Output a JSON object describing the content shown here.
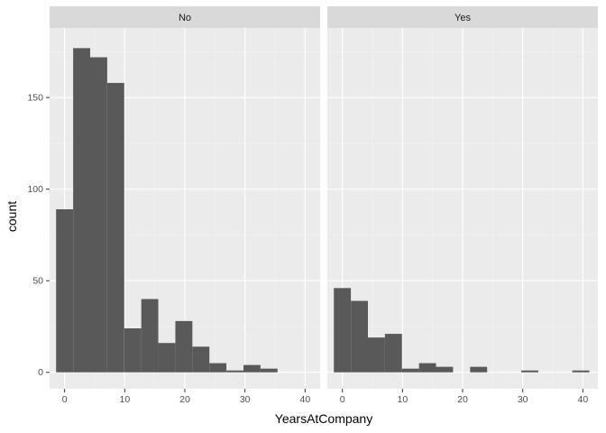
{
  "chart_data": {
    "type": "bar",
    "subtype": "faceted-histogram",
    "xlabel": "YearsAtCompany",
    "ylabel": "count",
    "xlim": [
      -2.5,
      42.5
    ],
    "ylim": [
      -9,
      188
    ],
    "x_ticks": [
      0,
      10,
      20,
      30,
      40
    ],
    "y_ticks": [
      0,
      50,
      100,
      150
    ],
    "x_tick_labels": [
      "0",
      "10",
      "20",
      "30",
      "40"
    ],
    "y_tick_labels": [
      "0",
      "50",
      "100",
      "150"
    ],
    "bin_width": 2.83,
    "bin_starts": [
      -1.42,
      1.42,
      4.25,
      7.08,
      9.92,
      12.75,
      15.58,
      18.42,
      21.25,
      24.08,
      26.92,
      29.75,
      32.58,
      35.42,
      38.25
    ],
    "grid": true,
    "bar_color": "#595959",
    "panel_background": "#ebebeb",
    "strip_background": "#d9d9d9",
    "facets": [
      {
        "name": "No",
        "values": [
          89,
          177,
          172,
          158,
          24,
          40,
          16,
          28,
          14,
          5,
          1,
          4,
          2,
          0,
          0
        ]
      },
      {
        "name": "Yes",
        "values": [
          46,
          39,
          19,
          21,
          2,
          5,
          3,
          0,
          3,
          0,
          0,
          1,
          0,
          0,
          1
        ]
      }
    ]
  }
}
